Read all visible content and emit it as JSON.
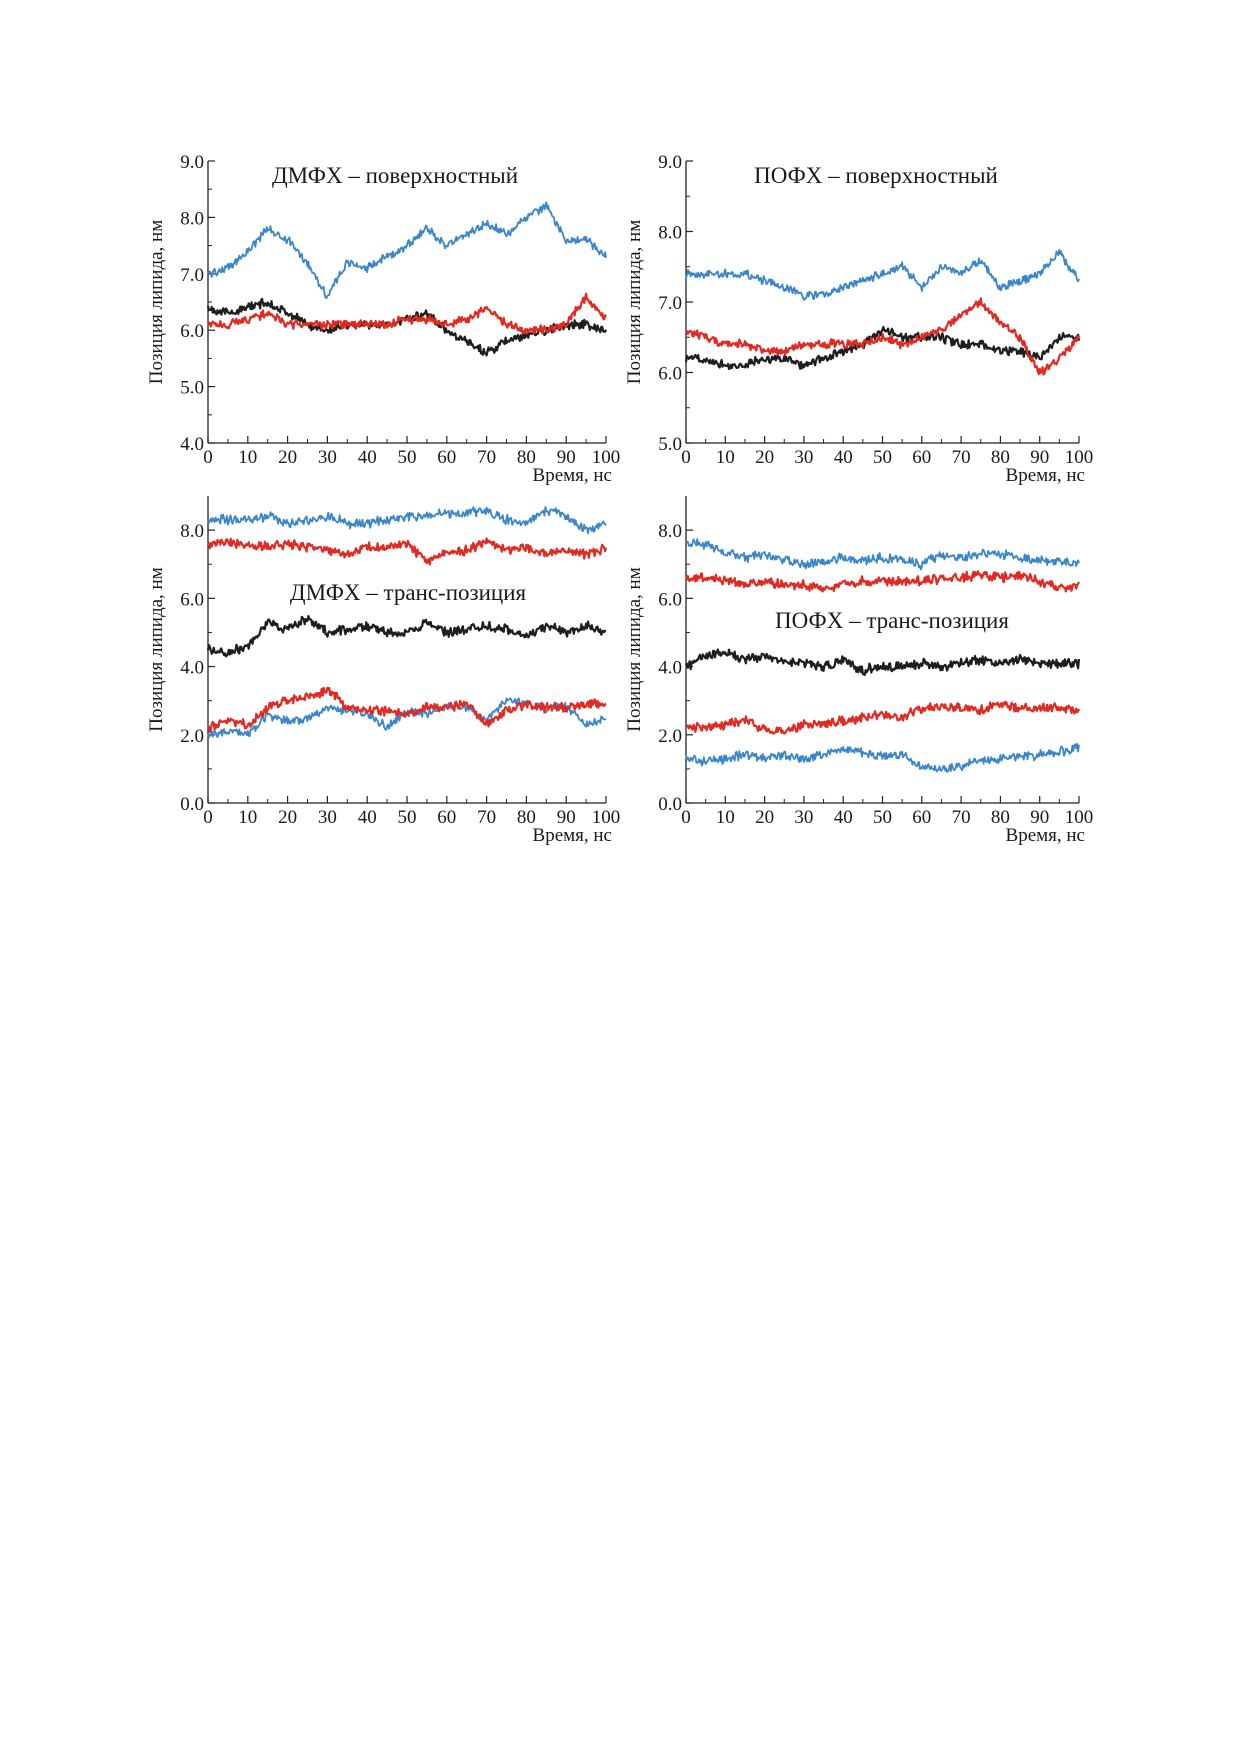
{
  "chart_data": [
    {
      "type": "line",
      "title": "ДМФХ – поверхностный",
      "xlabel": "Время, нс",
      "ylabel": "Позиция липида, нм",
      "xlim": [
        0,
        100
      ],
      "ylim": [
        4.0,
        9.0
      ],
      "xticks": [
        "0",
        "10",
        "20",
        "30",
        "40",
        "50",
        "60",
        "70",
        "80",
        "90",
        "100"
      ],
      "yticks": [
        "4.0",
        "5.0",
        "6.0",
        "7.0",
        "8.0",
        "9.0"
      ],
      "grid": false,
      "series": [
        {
          "color": "#3a86c8",
          "x": [
            0,
            5,
            10,
            15,
            20,
            25,
            30,
            35,
            40,
            45,
            50,
            55,
            60,
            65,
            70,
            75,
            80,
            85,
            90,
            95,
            100
          ],
          "y": [
            7.0,
            7.1,
            7.4,
            7.8,
            7.6,
            7.2,
            6.6,
            7.2,
            7.1,
            7.3,
            7.5,
            7.8,
            7.5,
            7.7,
            7.9,
            7.7,
            8.0,
            8.2,
            7.6,
            7.6,
            7.3
          ]
        },
        {
          "color": "#1e1e1e",
          "x": [
            0,
            5,
            10,
            15,
            20,
            25,
            30,
            35,
            40,
            45,
            50,
            55,
            60,
            65,
            70,
            75,
            80,
            85,
            90,
            95,
            100
          ],
          "y": [
            6.4,
            6.3,
            6.4,
            6.5,
            6.3,
            6.1,
            6.0,
            6.1,
            6.1,
            6.1,
            6.2,
            6.3,
            6.0,
            5.8,
            5.6,
            5.8,
            5.9,
            6.0,
            6.1,
            6.1,
            6.0
          ]
        },
        {
          "color": "#e02a22",
          "x": [
            0,
            5,
            10,
            15,
            20,
            25,
            30,
            35,
            40,
            45,
            50,
            55,
            60,
            65,
            70,
            75,
            80,
            85,
            90,
            95,
            100
          ],
          "y": [
            6.1,
            6.1,
            6.2,
            6.3,
            6.1,
            6.1,
            6.1,
            6.1,
            6.1,
            6.1,
            6.2,
            6.2,
            6.1,
            6.2,
            6.4,
            6.1,
            6.0,
            6.0,
            6.1,
            6.6,
            6.2
          ]
        }
      ]
    },
    {
      "type": "line",
      "title": "ПОФХ – поверхностный",
      "xlabel": "Время, нс",
      "ylabel": "Позиция липида, нм",
      "xlim": [
        0,
        100
      ],
      "ylim": [
        5.0,
        9.0
      ],
      "xticks": [
        "0",
        "10",
        "20",
        "30",
        "40",
        "50",
        "60",
        "70",
        "80",
        "90",
        "100"
      ],
      "yticks": [
        "5.0",
        "6.0",
        "7.0",
        "8.0",
        "9.0"
      ],
      "grid": false,
      "series": [
        {
          "color": "#3a86c8",
          "x": [
            0,
            5,
            10,
            15,
            20,
            25,
            30,
            35,
            40,
            45,
            50,
            55,
            60,
            65,
            70,
            75,
            80,
            85,
            90,
            95,
            100
          ],
          "y": [
            7.4,
            7.4,
            7.4,
            7.4,
            7.3,
            7.2,
            7.1,
            7.1,
            7.2,
            7.3,
            7.4,
            7.5,
            7.2,
            7.5,
            7.4,
            7.6,
            7.2,
            7.3,
            7.4,
            7.7,
            7.3
          ]
        },
        {
          "color": "#1e1e1e",
          "x": [
            0,
            5,
            10,
            15,
            20,
            25,
            30,
            35,
            40,
            45,
            50,
            55,
            60,
            65,
            70,
            75,
            80,
            85,
            90,
            95,
            100
          ],
          "y": [
            6.2,
            6.2,
            6.1,
            6.1,
            6.2,
            6.2,
            6.1,
            6.2,
            6.3,
            6.4,
            6.6,
            6.5,
            6.5,
            6.5,
            6.4,
            6.4,
            6.3,
            6.3,
            6.2,
            6.5,
            6.5
          ]
        },
        {
          "color": "#e02a22",
          "x": [
            0,
            5,
            10,
            15,
            20,
            25,
            30,
            35,
            40,
            45,
            50,
            55,
            60,
            65,
            70,
            75,
            80,
            85,
            90,
            95,
            100
          ],
          "y": [
            6.6,
            6.5,
            6.4,
            6.4,
            6.3,
            6.3,
            6.4,
            6.4,
            6.4,
            6.4,
            6.5,
            6.4,
            6.5,
            6.6,
            6.8,
            7.0,
            6.7,
            6.5,
            6.0,
            6.2,
            6.5
          ]
        }
      ]
    },
    {
      "type": "line",
      "title": "ДМФХ – транс-позиция",
      "xlabel": "Время, нс",
      "ylabel": "Позиция липида, нм",
      "xlim": [
        0,
        100
      ],
      "ylim": [
        0.0,
        9.0
      ],
      "xticks": [
        "0",
        "10",
        "20",
        "30",
        "40",
        "50",
        "60",
        "70",
        "80",
        "90",
        "100"
      ],
      "yticks": [
        "0.0",
        "2.0",
        "4.0",
        "6.0",
        "8.0"
      ],
      "grid": false,
      "series": [
        {
          "color": "#3a86c8",
          "x": [
            0,
            5,
            10,
            15,
            20,
            25,
            30,
            35,
            40,
            45,
            50,
            55,
            60,
            65,
            70,
            75,
            80,
            85,
            90,
            95,
            100
          ],
          "y": [
            8.3,
            8.3,
            8.3,
            8.4,
            8.2,
            8.3,
            8.4,
            8.2,
            8.2,
            8.3,
            8.4,
            8.4,
            8.5,
            8.5,
            8.6,
            8.3,
            8.2,
            8.6,
            8.4,
            8.0,
            8.2
          ]
        },
        {
          "color": "#e02a22",
          "x": [
            0,
            5,
            10,
            15,
            20,
            25,
            30,
            35,
            40,
            45,
            50,
            55,
            60,
            65,
            70,
            75,
            80,
            85,
            90,
            95,
            100
          ],
          "y": [
            7.6,
            7.6,
            7.6,
            7.5,
            7.6,
            7.5,
            7.4,
            7.3,
            7.5,
            7.5,
            7.6,
            7.1,
            7.3,
            7.4,
            7.7,
            7.4,
            7.5,
            7.3,
            7.4,
            7.3,
            7.5
          ]
        },
        {
          "color": "#1e1e1e",
          "x": [
            0,
            5,
            10,
            15,
            20,
            25,
            30,
            35,
            40,
            45,
            50,
            55,
            60,
            65,
            70,
            75,
            80,
            85,
            90,
            95,
            100
          ],
          "y": [
            4.5,
            4.4,
            4.6,
            5.3,
            5.1,
            5.4,
            5.0,
            5.1,
            5.2,
            5.0,
            5.0,
            5.3,
            5.0,
            5.1,
            5.2,
            5.1,
            4.9,
            5.2,
            5.0,
            5.2,
            5.0
          ]
        },
        {
          "color": "#3a86c8",
          "x": [
            0,
            5,
            10,
            15,
            20,
            25,
            30,
            35,
            40,
            45,
            50,
            55,
            60,
            65,
            70,
            75,
            80,
            85,
            90,
            95,
            100
          ],
          "y": [
            2.0,
            2.1,
            2.0,
            2.6,
            2.4,
            2.5,
            2.8,
            2.7,
            2.6,
            2.2,
            2.7,
            2.6,
            2.9,
            2.8,
            2.4,
            3.0,
            2.9,
            2.8,
            2.8,
            2.3,
            2.5
          ]
        },
        {
          "color": "#e02a22",
          "x": [
            0,
            5,
            10,
            15,
            20,
            25,
            30,
            35,
            40,
            45,
            50,
            55,
            60,
            65,
            70,
            75,
            80,
            85,
            90,
            95,
            100
          ],
          "y": [
            2.2,
            2.4,
            2.3,
            2.8,
            3.0,
            3.1,
            3.3,
            2.8,
            2.7,
            2.7,
            2.6,
            2.8,
            2.8,
            2.9,
            2.3,
            2.7,
            2.9,
            2.8,
            2.8,
            2.9,
            2.9
          ]
        }
      ]
    },
    {
      "type": "line",
      "title": "ПОФХ – транс-позиция",
      "xlabel": "Время, нс",
      "ylabel": "Позиция липида, нм",
      "xlim": [
        0,
        100
      ],
      "ylim": [
        0.0,
        9.0
      ],
      "xticks": [
        "0",
        "10",
        "20",
        "30",
        "40",
        "50",
        "60",
        "70",
        "80",
        "90",
        "100"
      ],
      "yticks": [
        "0.0",
        "2.0",
        "4.0",
        "6.0",
        "8.0"
      ],
      "grid": false,
      "series": [
        {
          "color": "#3a86c8",
          "x": [
            0,
            5,
            10,
            15,
            20,
            25,
            30,
            35,
            40,
            45,
            50,
            55,
            60,
            65,
            70,
            75,
            80,
            85,
            90,
            95,
            100
          ],
          "y": [
            7.6,
            7.6,
            7.3,
            7.2,
            7.3,
            7.1,
            7.0,
            7.1,
            7.2,
            7.1,
            7.2,
            7.1,
            7.0,
            7.3,
            7.2,
            7.3,
            7.3,
            7.2,
            7.1,
            7.1,
            7.0
          ]
        },
        {
          "color": "#e02a22",
          "x": [
            0,
            5,
            10,
            15,
            20,
            25,
            30,
            35,
            40,
            45,
            50,
            55,
            60,
            65,
            70,
            75,
            80,
            85,
            90,
            95,
            100
          ],
          "y": [
            6.6,
            6.6,
            6.5,
            6.4,
            6.5,
            6.4,
            6.4,
            6.3,
            6.4,
            6.5,
            6.5,
            6.5,
            6.5,
            6.6,
            6.6,
            6.7,
            6.6,
            6.7,
            6.5,
            6.3,
            6.4
          ]
        },
        {
          "color": "#1e1e1e",
          "x": [
            0,
            5,
            10,
            15,
            20,
            25,
            30,
            35,
            40,
            45,
            50,
            55,
            60,
            65,
            70,
            75,
            80,
            85,
            90,
            95,
            100
          ],
          "y": [
            4.0,
            4.3,
            4.4,
            4.2,
            4.3,
            4.2,
            4.1,
            4.0,
            4.2,
            3.9,
            4.0,
            4.0,
            4.1,
            4.0,
            4.1,
            4.2,
            4.1,
            4.2,
            4.1,
            4.1,
            4.1
          ]
        },
        {
          "color": "#e02a22",
          "x": [
            0,
            5,
            10,
            15,
            20,
            25,
            30,
            35,
            40,
            45,
            50,
            55,
            60,
            65,
            70,
            75,
            80,
            85,
            90,
            95,
            100
          ],
          "y": [
            2.2,
            2.2,
            2.3,
            2.4,
            2.2,
            2.1,
            2.3,
            2.3,
            2.4,
            2.5,
            2.6,
            2.5,
            2.8,
            2.8,
            2.8,
            2.7,
            2.9,
            2.8,
            2.8,
            2.8,
            2.7
          ]
        },
        {
          "color": "#3a86c8",
          "x": [
            0,
            5,
            10,
            15,
            20,
            25,
            30,
            35,
            40,
            45,
            50,
            55,
            60,
            65,
            70,
            75,
            80,
            85,
            90,
            95,
            100
          ],
          "y": [
            1.3,
            1.2,
            1.3,
            1.4,
            1.3,
            1.4,
            1.3,
            1.4,
            1.6,
            1.5,
            1.4,
            1.4,
            1.1,
            1.0,
            1.1,
            1.2,
            1.3,
            1.4,
            1.4,
            1.5,
            1.6
          ]
        }
      ]
    }
  ]
}
